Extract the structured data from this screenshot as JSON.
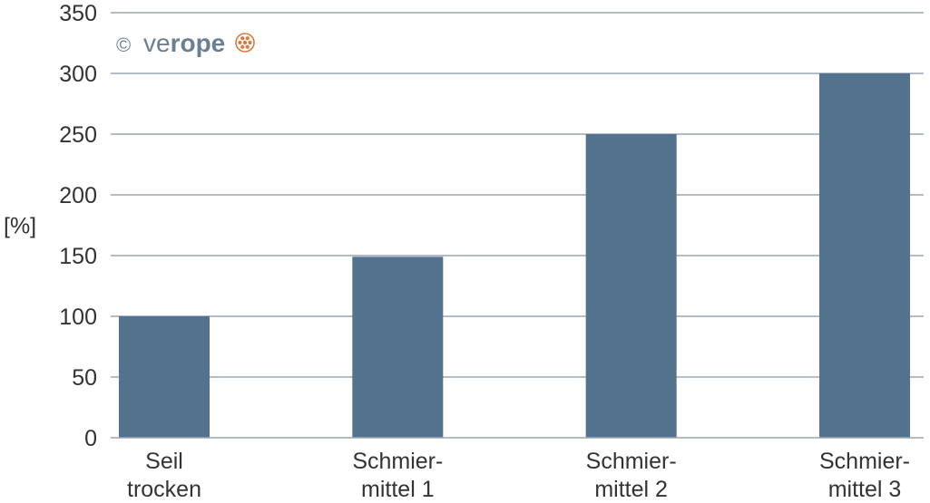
{
  "chart_data": {
    "type": "bar",
    "categories": [
      [
        "Seil",
        "trocken"
      ],
      [
        "Schmier-",
        "mittel 1"
      ],
      [
        "Schmier-",
        "mittel 2"
      ],
      [
        "Schmier-",
        "mittel 3"
      ]
    ],
    "values": [
      100,
      149,
      250,
      300
    ],
    "ylabel": "[%]",
    "xlabel": "",
    "title": "",
    "ylim": [
      0,
      350
    ],
    "yticks": [
      0,
      50,
      100,
      150,
      200,
      250,
      300,
      350
    ],
    "grid": true,
    "legend": "none"
  },
  "colors": {
    "bar": "#52728e",
    "grid": "#9aa6b3",
    "axis": "#9aa6b3",
    "logo_gray": "#6b7f93",
    "logo_accent": "#e0783c"
  },
  "logo": {
    "copyright": "©",
    "text_light": "ve",
    "text_bold": "rope"
  }
}
